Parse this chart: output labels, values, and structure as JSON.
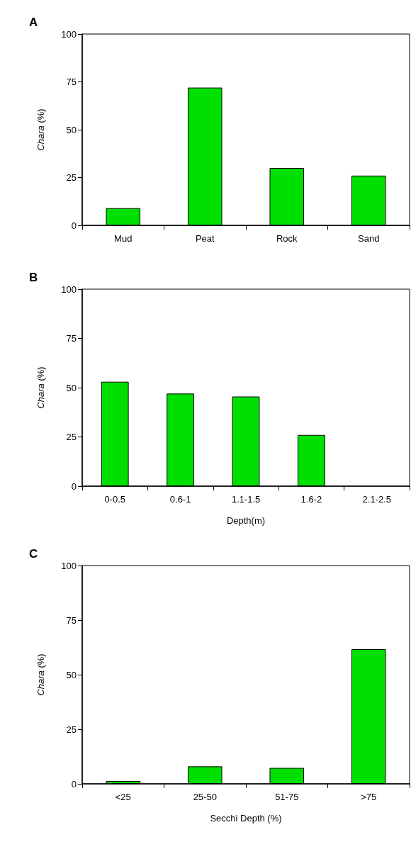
{
  "chart_data": [
    {
      "type": "bar",
      "title": "A",
      "ylabel": "Chara (%)",
      "categories": [
        "Mud",
        "Peat",
        "Rock",
        "Sand"
      ],
      "values": [
        9,
        72,
        30,
        26
      ],
      "color": "#00e000",
      "ylim": [
        0,
        100
      ],
      "yticks": [
        0,
        25,
        50,
        75,
        100
      ],
      "grid": false
    },
    {
      "type": "bar",
      "title": "B",
      "ylabel": "Chara (%)",
      "xlabel": "Depth(m)",
      "categories": [
        "0-0.5",
        "0.6-1",
        "1.1-1.5",
        "1.6-2",
        "2.1-2.5"
      ],
      "values": [
        53,
        47,
        45.5,
        26,
        0
      ],
      "color": "#00e000",
      "ylim": [
        0,
        100
      ],
      "yticks": [
        0,
        25,
        50,
        75,
        100
      ],
      "grid": false
    },
    {
      "type": "bar",
      "title": "C",
      "ylabel": "Chara (%)",
      "xlabel": "Secchi Depth (%)",
      "categories": [
        "<25",
        "25-50",
        "51-75",
        ">75"
      ],
      "values": [
        1.3,
        8,
        7.3,
        61.7
      ],
      "color": "#00e000",
      "ylim": [
        0,
        100
      ],
      "yticks": [
        0,
        25,
        50,
        75,
        100
      ],
      "grid": false
    }
  ]
}
